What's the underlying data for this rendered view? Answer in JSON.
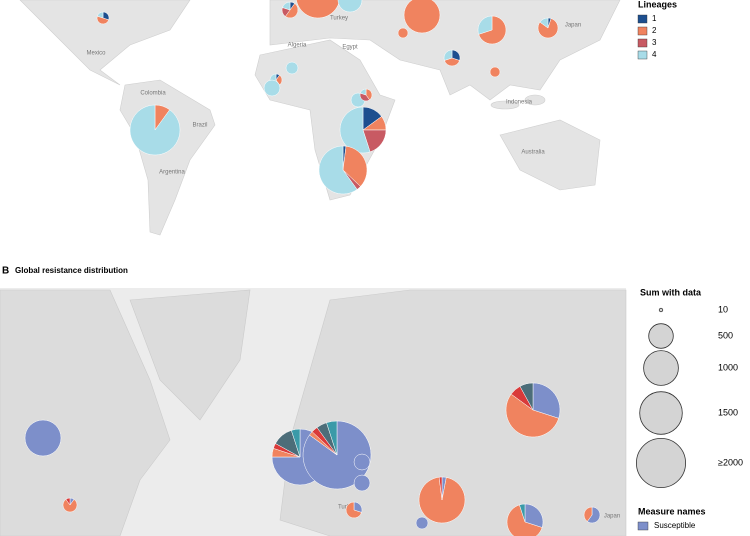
{
  "panel_a": {
    "legend": {
      "title": "Lineages",
      "items": [
        {
          "label": "1",
          "color": "#1d4f8f"
        },
        {
          "label": "2",
          "color": "#f0835f"
        },
        {
          "label": "3",
          "color": "#c85a63"
        },
        {
          "label": "4",
          "color": "#a8dce8"
        }
      ]
    },
    "map_labels": [
      "Mexico",
      "Colombia",
      "Brazil",
      "Argentina",
      "Algeria",
      "Egypt",
      "Turkey",
      "Japan",
      "Indonesia",
      "Australia"
    ],
    "pies": [
      {
        "shares": [
          0.3,
          0.5,
          0,
          0.2
        ]
      },
      {
        "shares": [
          0,
          0.9,
          0,
          0.1
        ]
      },
      {
        "shares": [
          0,
          0,
          0,
          1
        ]
      },
      {
        "shares": [
          0.1,
          0.5,
          0.2,
          0.2
        ]
      },
      {
        "shares": [
          0,
          1,
          0,
          0
        ]
      },
      {
        "shares": [
          0,
          0.7,
          0,
          0.3
        ]
      },
      {
        "shares": [
          0.05,
          0.8,
          0,
          0.15
        ]
      },
      {
        "shares": [
          0,
          1,
          0,
          0
        ]
      },
      {
        "shares": [
          0.3,
          0.4,
          0,
          0.3
        ]
      },
      {
        "shares": [
          0,
          1,
          0,
          0
        ]
      },
      {
        "shares": [
          0,
          0,
          0,
          1
        ]
      },
      {
        "shares": [
          0.1,
          0.3,
          0,
          0.6
        ]
      },
      {
        "shares": [
          0,
          0,
          0,
          1
        ]
      },
      {
        "shares": [
          0,
          0,
          0,
          1
        ]
      },
      {
        "shares": [
          0,
          0.4,
          0.4,
          0.2
        ]
      },
      {
        "shares": [
          0,
          0.1,
          0,
          0.9
        ]
      },
      {
        "shares": [
          0.15,
          0.1,
          0.2,
          0.55
        ]
      },
      {
        "shares": [
          0.02,
          0.35,
          0.03,
          0.6
        ]
      }
    ]
  },
  "panel_b": {
    "letter": "B",
    "title": "Global resistance distribution",
    "size_legend": {
      "title": "Sum with data",
      "items": [
        10,
        500,
        1000,
        1500,
        {
          "value": 2000,
          "label": "≥2000"
        }
      ]
    },
    "measure_legend": {
      "title": "Measure names",
      "items": [
        {
          "label": "Susceptible",
          "color": "#7d8fca"
        }
      ]
    },
    "slice_colors": [
      "#7d8fca",
      "#f0835f",
      "#d93a3a",
      "#4c6d79",
      "#3a9aa8"
    ],
    "map_labels": [
      "Turkey",
      "Japan"
    ],
    "pies": [
      {
        "shares": [
          1,
          0,
          0,
          0,
          0
        ]
      },
      {
        "shares": [
          0.1,
          0.8,
          0.1,
          0,
          0
        ]
      },
      {
        "shares": [
          0.75,
          0.05,
          0.03,
          0.12,
          0.05
        ]
      },
      {
        "shares": [
          0.85,
          0.02,
          0.03,
          0.05,
          0.05
        ]
      },
      {
        "shares": [
          1,
          0,
          0,
          0,
          0
        ]
      },
      {
        "shares": [
          1,
          0,
          0,
          0,
          0
        ]
      },
      {
        "shares": [
          0.3,
          0.7,
          0,
          0,
          0
        ]
      },
      {
        "shares": [
          0.3,
          0.55,
          0.07,
          0.08,
          0
        ]
      },
      {
        "shares": [
          0.03,
          0.95,
          0.02,
          0,
          0
        ]
      },
      {
        "shares": [
          1,
          0,
          0,
          0,
          0
        ]
      },
      {
        "shares": [
          0.3,
          0.65,
          0,
          0,
          0.05
        ]
      },
      {
        "shares": [
          0.6,
          0.4,
          0,
          0,
          0
        ]
      }
    ]
  }
}
